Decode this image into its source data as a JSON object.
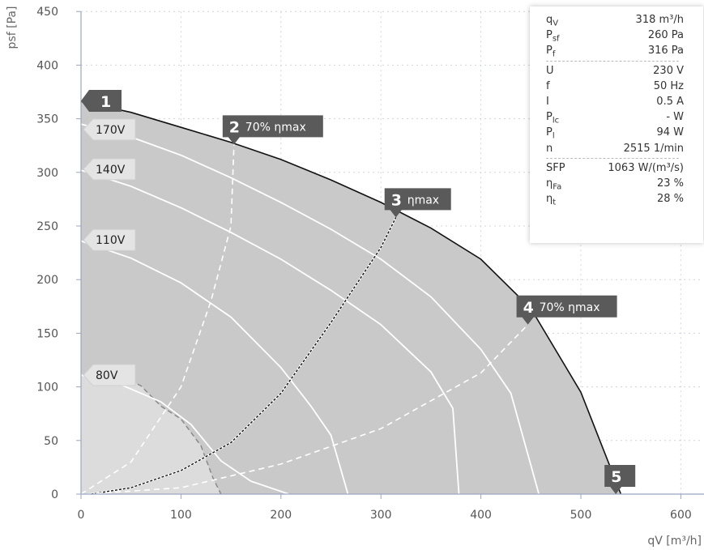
{
  "chart_data": {
    "type": "line",
    "xlabel": "qV [m³/h]",
    "ylabel": "psf [Pa]",
    "xlim": [
      0,
      620
    ],
    "ylim": [
      0,
      450
    ],
    "x_ticks": [
      0,
      100,
      200,
      300,
      400,
      500,
      600
    ],
    "y_ticks": [
      0,
      50,
      100,
      150,
      200,
      250,
      300,
      350,
      400,
      450
    ],
    "grid": true,
    "fan_curves": [
      {
        "label": "",
        "points": [
          [
            0,
            366
          ],
          [
            50,
            356
          ],
          [
            100,
            342
          ],
          [
            150,
            328
          ],
          [
            200,
            312
          ],
          [
            250,
            293
          ],
          [
            300,
            272
          ],
          [
            350,
            248
          ],
          [
            400,
            219
          ],
          [
            450,
            173
          ],
          [
            500,
            95
          ],
          [
            540,
            0
          ]
        ]
      },
      {
        "label": "170V",
        "points": [
          [
            0,
            345
          ],
          [
            50,
            333
          ],
          [
            100,
            316
          ],
          [
            150,
            295
          ],
          [
            200,
            272
          ],
          [
            250,
            247
          ],
          [
            300,
            219
          ],
          [
            350,
            184
          ],
          [
            400,
            135
          ],
          [
            430,
            94
          ],
          [
            458,
            0
          ]
        ]
      },
      {
        "label": "140V",
        "points": [
          [
            0,
            302
          ],
          [
            50,
            287
          ],
          [
            100,
            267
          ],
          [
            150,
            244
          ],
          [
            200,
            219
          ],
          [
            250,
            190
          ],
          [
            300,
            158
          ],
          [
            350,
            114
          ],
          [
            372,
            80
          ],
          [
            378,
            0
          ]
        ]
      },
      {
        "label": "110V",
        "points": [
          [
            0,
            236
          ],
          [
            50,
            220
          ],
          [
            100,
            197
          ],
          [
            150,
            165
          ],
          [
            200,
            118
          ],
          [
            230,
            82
          ],
          [
            250,
            55
          ],
          [
            267,
            0
          ]
        ]
      },
      {
        "label": "80V",
        "points": [
          [
            0,
            111
          ],
          [
            40,
            102
          ],
          [
            80,
            86
          ],
          [
            110,
            65
          ],
          [
            140,
            31
          ],
          [
            170,
            12
          ],
          [
            208,
            0
          ]
        ]
      }
    ],
    "efficiency_lines": [
      {
        "label": "70% ηmax",
        "points": [
          [
            0,
            0
          ],
          [
            50,
            30
          ],
          [
            100,
            100
          ],
          [
            130,
            180
          ],
          [
            150,
            250
          ],
          [
            153,
            326
          ]
        ]
      },
      {
        "label": "ηmax",
        "points": [
          [
            10,
            0
          ],
          [
            50,
            6
          ],
          [
            100,
            22
          ],
          [
            150,
            48
          ],
          [
            200,
            94
          ],
          [
            250,
            160
          ],
          [
            300,
            230
          ],
          [
            315,
            258
          ]
        ]
      },
      {
        "label": "70% ηmax",
        "points": [
          [
            5,
            0
          ],
          [
            100,
            6
          ],
          [
            200,
            28
          ],
          [
            300,
            61
          ],
          [
            400,
            113
          ],
          [
            447,
            158
          ]
        ]
      }
    ],
    "cut_line_80V": [
      [
        35,
        113
      ],
      [
        60,
        101
      ],
      [
        80,
        82
      ],
      [
        100,
        70
      ],
      [
        120,
        45
      ],
      [
        132,
        15
      ],
      [
        140,
        0
      ]
    ],
    "markers": [
      {
        "number": "1",
        "label": "",
        "q": 0,
        "p": 366
      },
      {
        "number": "2",
        "label": "70% ηmax",
        "q": 153,
        "p": 326
      },
      {
        "number": "3",
        "label": "ηmax",
        "q": 315,
        "p": 258
      },
      {
        "number": "4",
        "label": "70% ηmax",
        "q": 447,
        "p": 158
      },
      {
        "number": "5",
        "label": "",
        "q": 535,
        "p": 0
      }
    ],
    "voltage_tags": [
      {
        "label": "170V",
        "p": 340
      },
      {
        "label": "140V",
        "p": 303
      },
      {
        "label": "110V",
        "p": 237
      },
      {
        "label": "80V",
        "p": 111
      }
    ],
    "colors": {
      "operating_area": "#c9c9c9",
      "low_area": "#dcdcdc",
      "curve": "#ffffff",
      "tag": "#5a5a5a",
      "grid": "#d0d4de"
    }
  },
  "info": {
    "rows": [
      {
        "label": "q",
        "sub": "V",
        "value": "318 m³/h"
      },
      {
        "label": "P",
        "sub": "sf",
        "value": "260 Pa"
      },
      {
        "label": "P",
        "sub": "f",
        "value": "316 Pa"
      },
      {
        "label": "U",
        "sub": "",
        "value": "230 V"
      },
      {
        "label": "f",
        "sub": "",
        "value": "50 Hz"
      },
      {
        "label": "I",
        "sub": "",
        "value": "0.5 A"
      },
      {
        "label": "P",
        "sub": "lc",
        "value": "- W"
      },
      {
        "label": "P",
        "sub": "l",
        "value": "94 W"
      },
      {
        "label": "n",
        "sub": "",
        "value": "2515 1/min"
      },
      {
        "label": "SFP",
        "sub": "",
        "value": "1063 W/(m³/s)"
      },
      {
        "label": "η",
        "sub": "Fa",
        "value": "23 %"
      },
      {
        "label": "η",
        "sub": "t",
        "value": "28 %"
      }
    ],
    "separators_after": [
      2,
      8
    ]
  }
}
